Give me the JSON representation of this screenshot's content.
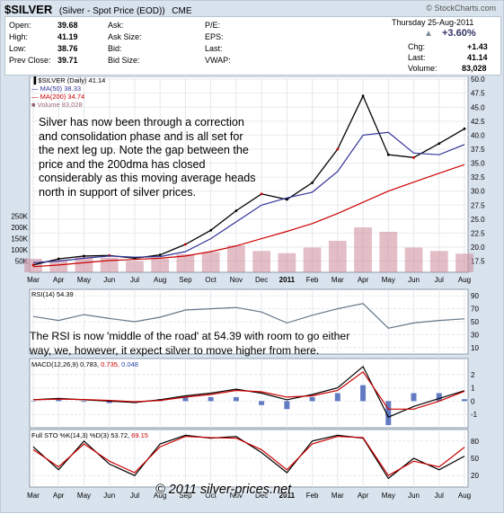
{
  "header": {
    "symbol": "$SILVER",
    "description": "(Silver - Spot Price (EOD))",
    "exchange": "CME",
    "brand": "© StockCharts.com",
    "date": "Thursday 25-Aug-2011",
    "change_pct": "+3.60%"
  },
  "quote": {
    "open": {
      "label": "Open:",
      "value": "39.68"
    },
    "high": {
      "label": "High:",
      "value": "41.19"
    },
    "low": {
      "label": "Low:",
      "value": "38.76"
    },
    "prev_close": {
      "label": "Prev Close:",
      "value": "39.71"
    },
    "ask": "Ask:",
    "ask_size": "Ask Size:",
    "bid": "Bid:",
    "bid_size": "Bid Size:",
    "pe": "P/E:",
    "eps": "EPS:",
    "last_label": "Last:",
    "vwap": "VWAP:",
    "chg": {
      "label": "Chg:",
      "value": "+1.43"
    },
    "last": {
      "label": "Last:",
      "value": "41.14"
    },
    "volume": {
      "label": "Volume:",
      "value": "83,028"
    }
  },
  "legends": {
    "price": "$SILVER (Daily) 41.14",
    "ma50": "MA(50) 38.33",
    "ma200": "MA(200) 34.74",
    "volume": "Volume 83,028",
    "rsi": "RSI(14) 54.39",
    "macd_a": "MACD(12,26,9) 0.783,",
    "macd_b": "0.735,",
    "macd_c": "0.048",
    "sto_a": "Full STO %K(14,3) %D(3) 53.72,",
    "sto_b": "69.15"
  },
  "annotations": {
    "price_lines": [
      "Silver has now been through a correction",
      "and consolidation phase and is all set for",
      "the next leg up. Note the gap between the",
      "price and the 200dma has closed",
      "considerably as this moving average heads",
      "north in support of silver prices."
    ],
    "rsi_lines": [
      "The RSI is now 'middle of the road' at 54.39 with room to go either",
      "way, we, however, it expect silver to move higher from here."
    ],
    "copyright": "© 2011 silver-prices.net"
  },
  "colors": {
    "price_up": "#000000",
    "price_down": "#cc0000",
    "ma50": "#333399",
    "ma200": "#cc0000",
    "volume": "#cc8899",
    "rsi": "#667788",
    "macd_hist": "#2244aa"
  },
  "chart_data": [
    {
      "type": "line",
      "title": "$SILVER (Daily) 41.14",
      "x": [
        "Mar",
        "Apr",
        "May",
        "Jun",
        "Jul",
        "Aug",
        "Sep",
        "Oct",
        "Nov",
        "Dec",
        "2011",
        "Feb",
        "Mar",
        "Apr",
        "May",
        "Jun",
        "Jul",
        "Aug"
      ],
      "series": [
        {
          "name": "$SILVER (Daily) 41.14",
          "values": [
            16.8,
            17.9,
            18.4,
            18.5,
            18.0,
            18.6,
            20.5,
            23.0,
            26.5,
            29.5,
            28.5,
            31.5,
            37.5,
            47.0,
            36.5,
            36.0,
            38.5,
            41.14
          ]
        },
        {
          "name": "MA(50) 38.33",
          "values": [
            17.2,
            17.5,
            18.0,
            18.4,
            18.2,
            18.3,
            19.2,
            21.5,
            24.5,
            27.5,
            28.8,
            29.8,
            33.5,
            40.0,
            40.5,
            36.8,
            36.5,
            38.33
          ]
        },
        {
          "name": "MA(200) 34.74",
          "values": [
            16.5,
            16.8,
            17.2,
            17.6,
            17.8,
            18.0,
            18.4,
            19.2,
            20.2,
            21.5,
            22.8,
            24.2,
            26.0,
            28.0,
            30.0,
            31.6,
            33.2,
            34.74
          ]
        }
      ],
      "ylim": [
        15.5,
        50.5
      ],
      "yticks": [
        17.5,
        20.0,
        22.5,
        25.0,
        27.5,
        30.0,
        32.5,
        35.0,
        37.5,
        40.0,
        42.5,
        45.0,
        47.5,
        50.0
      ],
      "volume_ticks": [
        "50K",
        "100K",
        "150K",
        "200K",
        "250K"
      ],
      "volume_values": [
        60,
        55,
        70,
        65,
        50,
        60,
        80,
        90,
        120,
        95,
        85,
        110,
        140,
        200,
        180,
        110,
        95,
        83
      ]
    },
    {
      "type": "line",
      "title": "RSI(14) 54.39",
      "series": [
        {
          "name": "RSI(14) 54.39",
          "values": [
            58,
            52,
            61,
            55,
            50,
            57,
            68,
            70,
            72,
            65,
            48,
            60,
            70,
            78,
            40,
            48,
            52,
            54.39
          ]
        }
      ],
      "yticks": [
        10,
        30,
        50,
        70,
        90
      ]
    },
    {
      "type": "line",
      "title": "MACD(12,26,9) 0.783, 0.735, 0.048",
      "series": [
        {
          "name": "MACD(12,26,9) 0.783",
          "values": [
            0.1,
            0.2,
            0.1,
            0.0,
            -0.1,
            0.1,
            0.4,
            0.6,
            0.9,
            0.6,
            0.1,
            0.5,
            1.0,
            2.6,
            -1.2,
            -0.4,
            0.2,
            0.783
          ]
        },
        {
          "name": "0.735",
          "values": [
            0.1,
            0.15,
            0.12,
            0.05,
            -0.05,
            0.05,
            0.3,
            0.5,
            0.8,
            0.7,
            0.3,
            0.4,
            0.8,
            2.2,
            -0.6,
            -0.6,
            0.0,
            0.735
          ]
        }
      ],
      "yticks": [
        -1,
        0,
        1,
        2
      ]
    },
    {
      "type": "line",
      "title": "Full STO %K(14,3) %D(3) 53.72, 69.15",
      "series": [
        {
          "name": "Full STO %K(14,3) 53.72",
          "values": [
            70,
            30,
            80,
            40,
            20,
            75,
            90,
            85,
            88,
            60,
            25,
            80,
            90,
            85,
            15,
            50,
            30,
            53.72
          ]
        },
        {
          "name": "%D(3) 69.15",
          "values": [
            65,
            35,
            75,
            45,
            25,
            70,
            88,
            86,
            85,
            65,
            30,
            75,
            88,
            86,
            20,
            45,
            35,
            69.15
          ]
        }
      ],
      "yticks": [
        20,
        50,
        80
      ]
    }
  ]
}
